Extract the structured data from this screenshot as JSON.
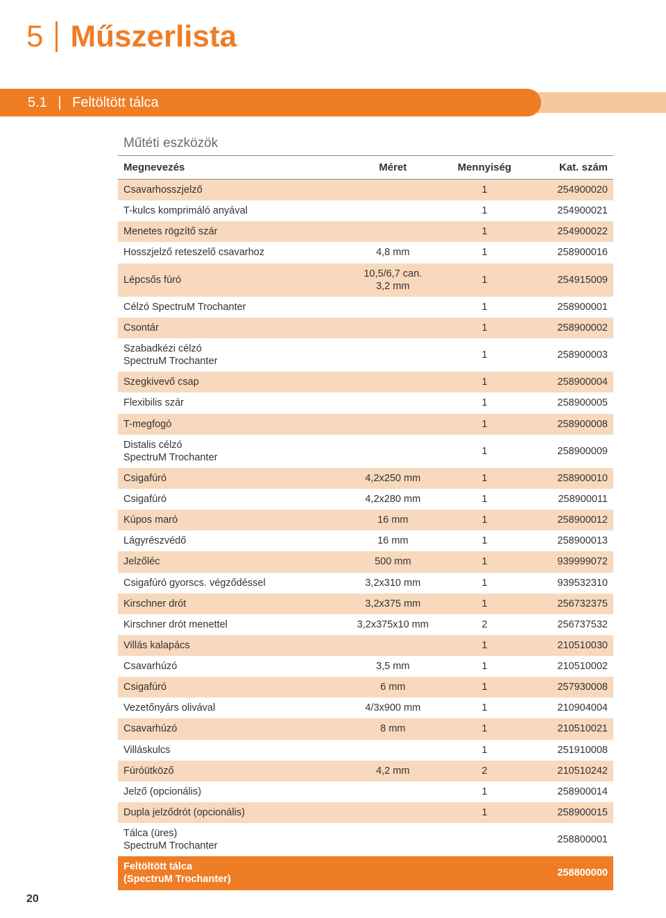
{
  "title": {
    "number": "5",
    "text": "Műszerlista"
  },
  "section": {
    "number": "5.1",
    "label": "Feltöltött tálca"
  },
  "table": {
    "caption": "Műtéti eszközök",
    "columns": [
      "Megnevezés",
      "Méret",
      "Mennyiség",
      "Kat. szám"
    ],
    "stripe_color": "#f8d9bd",
    "footer_bg": "#ef7d26",
    "rows": [
      {
        "name": "Csavarhosszjelző",
        "size": "",
        "qty": "1",
        "cat": "254900020",
        "stripe": true
      },
      {
        "name": "T-kulcs komprimáló anyával",
        "size": "",
        "qty": "1",
        "cat": "254900021",
        "stripe": false
      },
      {
        "name": "Menetes rögzítő szár",
        "size": "",
        "qty": "1",
        "cat": "254900022",
        "stripe": true
      },
      {
        "name": "Hosszjelző reteszelő csavarhoz",
        "size": "4,8 mm",
        "qty": "1",
        "cat": "258900016",
        "stripe": false
      },
      {
        "name": "Lépcsős fúró",
        "size": "10,5/6,7 can.\n3,2 mm",
        "qty": "1",
        "cat": "254915009",
        "stripe": true
      },
      {
        "name": "Célzó SpectruM Trochanter",
        "size": "",
        "qty": "1",
        "cat": "258900001",
        "stripe": false
      },
      {
        "name": "Csontár",
        "size": "",
        "qty": "1",
        "cat": "258900002",
        "stripe": true
      },
      {
        "name": "Szabadkézi célzó\nSpectruM Trochanter",
        "size": "",
        "qty": "1",
        "cat": "258900003",
        "stripe": false
      },
      {
        "name": "Szegkivevő csap",
        "size": "",
        "qty": "1",
        "cat": "258900004",
        "stripe": true
      },
      {
        "name": "Flexibilis szár",
        "size": "",
        "qty": "1",
        "cat": "258900005",
        "stripe": false
      },
      {
        "name": "T-megfogó",
        "size": "",
        "qty": "1",
        "cat": "258900008",
        "stripe": true
      },
      {
        "name": "Distalis célzó\nSpectruM Trochanter",
        "size": "",
        "qty": "1",
        "cat": "258900009",
        "stripe": false
      },
      {
        "name": "Csigafúró",
        "size": "4,2x250 mm",
        "qty": "1",
        "cat": "258900010",
        "stripe": true
      },
      {
        "name": "Csigafúró",
        "size": "4,2x280 mm",
        "qty": "1",
        "cat": "258900011",
        "stripe": false
      },
      {
        "name": "Kúpos maró",
        "size": "16 mm",
        "qty": "1",
        "cat": "258900012",
        "stripe": true
      },
      {
        "name": "Lágyrészvédő",
        "size": "16 mm",
        "qty": "1",
        "cat": "258900013",
        "stripe": false
      },
      {
        "name": "Jelzőléc",
        "size": "500 mm",
        "qty": "1",
        "cat": "939999072",
        "stripe": true
      },
      {
        "name": "Csigafúró gyorscs. végződéssel",
        "size": "3,2x310 mm",
        "qty": "1",
        "cat": "939532310",
        "stripe": false
      },
      {
        "name": "Kirschner drót",
        "size": "3,2x375 mm",
        "qty": "1",
        "cat": "256732375",
        "stripe": true
      },
      {
        "name": "Kirschner drót menettel",
        "size": "3,2x375x10 mm",
        "qty": "2",
        "cat": "256737532",
        "stripe": false
      },
      {
        "name": "Villás kalapács",
        "size": "",
        "qty": "1",
        "cat": "210510030",
        "stripe": true
      },
      {
        "name": "Csavarhúzó",
        "size": "3,5 mm",
        "qty": "1",
        "cat": "210510002",
        "stripe": false
      },
      {
        "name": "Csigafúró",
        "size": "6 mm",
        "qty": "1",
        "cat": "257930008",
        "stripe": true
      },
      {
        "name": "Vezetőnyárs olivával",
        "size": "4/3x900 mm",
        "qty": "1",
        "cat": "210904004",
        "stripe": false
      },
      {
        "name": "Csavarhúzó",
        "size": "8 mm",
        "qty": "1",
        "cat": "210510021",
        "stripe": true
      },
      {
        "name": "Villáskulcs",
        "size": "",
        "qty": "1",
        "cat": "251910008",
        "stripe": false
      },
      {
        "name": "Fúróütköző",
        "size": "4,2 mm",
        "qty": "2",
        "cat": "210510242",
        "stripe": true
      },
      {
        "name": "Jelző (opcionális)",
        "size": "",
        "qty": "1",
        "cat": "258900014",
        "stripe": false
      },
      {
        "name": "Dupla jelződrót (opcionális)",
        "size": "",
        "qty": "1",
        "cat": "258900015",
        "stripe": true
      },
      {
        "name": "Tálca (üres)\nSpectruM Trochanter",
        "size": "",
        "qty": "",
        "cat": "258800001",
        "stripe": false
      },
      {
        "name": "Feltöltött tálca\n(SpectruM Trochanter)",
        "size": "",
        "qty": "",
        "cat": "258800000",
        "stripe": false,
        "footer": true
      }
    ]
  },
  "page_number": "20",
  "colors": {
    "brand": "#ef7d26",
    "band_back": "#f7c89f",
    "stripe": "#f8d9bd",
    "text": "#333333",
    "caption": "#6b6b6b"
  }
}
